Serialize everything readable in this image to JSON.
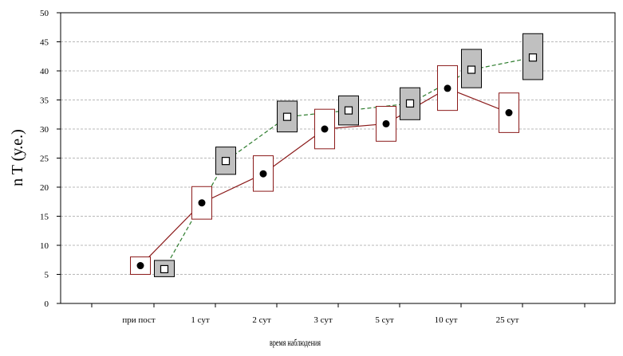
{
  "chart_data": {
    "type": "line",
    "xlabel": "время наблюдения",
    "ylabel": "n T (у.е.)",
    "ylim": [
      0,
      50
    ],
    "yticks": [
      0,
      5,
      10,
      15,
      20,
      25,
      30,
      35,
      40,
      45,
      50
    ],
    "grid": true,
    "categories": [
      "при пост",
      "1 сут",
      "2 сут",
      "3 сут",
      "5 сут",
      "10 сут",
      "25 сут"
    ],
    "series": [
      {
        "color": "#8b1a1a",
        "line_style": "solid",
        "marker": "filled-circle",
        "box_fill": "#ffffff",
        "values": [
          6.5,
          17.3,
          22.3,
          30.0,
          30.9,
          37.0,
          32.8
        ],
        "box_low": [
          5.0,
          14.5,
          19.3,
          26.6,
          27.9,
          33.2,
          29.4
        ],
        "box_high": [
          8.0,
          20.1,
          25.4,
          33.4,
          33.9,
          40.9,
          36.2
        ]
      },
      {
        "color": "#2e7d2e",
        "line_style": "dashed",
        "marker": "open-square",
        "box_fill": "#c0c0c0",
        "values": [
          5.9,
          24.5,
          32.1,
          33.2,
          34.4,
          40.2,
          42.3
        ],
        "box_low": [
          4.6,
          22.2,
          29.5,
          30.7,
          31.6,
          37.1,
          38.5
        ],
        "box_high": [
          7.4,
          26.9,
          34.8,
          35.7,
          37.1,
          43.7,
          46.4
        ]
      }
    ]
  }
}
